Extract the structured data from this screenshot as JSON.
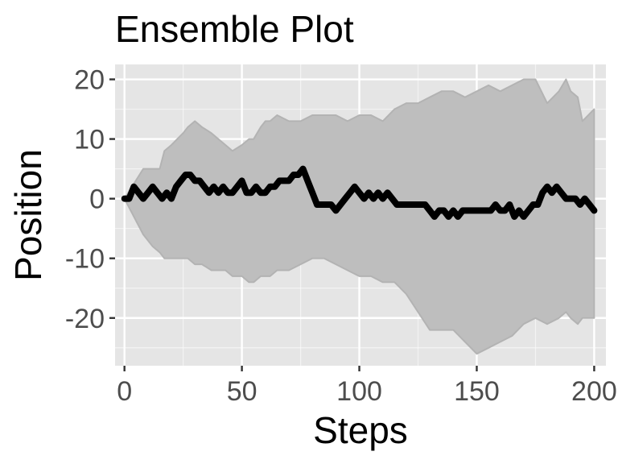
{
  "chart_data": {
    "type": "area",
    "title": "Ensemble Plot",
    "xlabel": "Steps",
    "ylabel": "Position",
    "xlim": [
      -4,
      205
    ],
    "ylim": [
      -28,
      22.5
    ],
    "x_ticks": [
      0,
      50,
      100,
      150,
      200
    ],
    "x_tick_labels": [
      "0",
      "50",
      "100",
      "150",
      "200"
    ],
    "y_ticks": [
      -20,
      -10,
      0,
      10,
      20
    ],
    "y_tick_labels": [
      "-20",
      "-10",
      "0",
      "10",
      "20"
    ],
    "grid": true,
    "legend": "none",
    "colors": {
      "panel": "#e5e5e5",
      "grid_major": "#ffffff",
      "ribbon_fill": "#bebebe",
      "ribbon_edge": "#b3b3b3",
      "line": "#000000",
      "tick": "#333333"
    },
    "series": [
      {
        "role": "ribbon",
        "x": [
          0,
          8,
          12,
          15,
          17,
          20,
          25,
          27,
          30,
          33,
          37,
          40,
          43,
          46,
          50,
          53,
          55,
          58,
          60,
          62,
          65,
          70,
          75,
          80,
          85,
          90,
          95,
          100,
          105,
          110,
          115,
          120,
          125,
          130,
          135,
          140,
          145,
          150,
          155,
          160,
          165,
          170,
          175,
          180,
          185,
          188,
          190,
          193,
          195,
          200
        ],
        "upper": [
          0,
          5,
          5,
          5,
          8,
          9,
          11,
          12,
          13,
          12,
          11,
          10,
          9,
          8,
          9,
          10,
          10,
          12,
          13,
          13,
          14,
          13,
          13,
          14,
          14,
          14,
          13,
          14,
          14,
          13,
          15,
          16,
          16,
          17,
          18,
          18,
          17,
          18,
          19,
          18,
          19,
          20,
          20,
          16,
          18,
          20,
          18,
          17,
          13,
          15
        ],
        "lower": [
          0,
          -6,
          -8,
          -9,
          -10,
          -10,
          -10,
          -10,
          -11,
          -11,
          -12,
          -12,
          -12,
          -13,
          -13,
          -14,
          -14,
          -13,
          -13,
          -13,
          -12,
          -12,
          -11,
          -10,
          -10,
          -11,
          -12,
          -13,
          -13,
          -14,
          -14,
          -16,
          -19,
          -22,
          -22,
          -22,
          -24,
          -26,
          -25,
          -24,
          -23,
          -21,
          -20,
          -21,
          -20,
          -19,
          -20,
          -21,
          -20,
          -20
        ]
      },
      {
        "role": "mean",
        "x": [
          0,
          2,
          4,
          6,
          8,
          10,
          12,
          14,
          16,
          18,
          20,
          22,
          24,
          26,
          28,
          30,
          32,
          34,
          36,
          38,
          40,
          42,
          44,
          46,
          48,
          50,
          52,
          54,
          56,
          58,
          60,
          62,
          64,
          66,
          68,
          70,
          72,
          74,
          76,
          78,
          80,
          82,
          84,
          86,
          88,
          90,
          92,
          94,
          96,
          98,
          100,
          102,
          104,
          106,
          108,
          110,
          112,
          114,
          116,
          118,
          120,
          122,
          124,
          126,
          128,
          130,
          132,
          134,
          136,
          138,
          140,
          142,
          144,
          146,
          148,
          150,
          152,
          154,
          156,
          158,
          160,
          162,
          164,
          166,
          168,
          170,
          172,
          174,
          176,
          178,
          180,
          182,
          184,
          186,
          188,
          190,
          192,
          194,
          196,
          198,
          200
        ],
        "y": [
          0,
          0,
          2,
          1,
          0,
          1,
          2,
          1,
          0,
          1,
          0,
          2,
          3,
          4,
          4,
          3,
          3,
          2,
          1,
          2,
          1,
          2,
          1,
          1,
          2,
          3,
          1,
          1,
          2,
          1,
          1,
          2,
          2,
          3,
          3,
          3,
          4,
          4,
          5,
          3,
          1,
          -1,
          -1,
          -1,
          -1,
          -2,
          -1,
          0,
          1,
          2,
          1,
          0,
          1,
          0,
          1,
          0,
          1,
          0,
          -1,
          -1,
          -1,
          -1,
          -1,
          -1,
          -1,
          -2,
          -3,
          -2,
          -2,
          -3,
          -2,
          -3,
          -2,
          -2,
          -2,
          -2,
          -2,
          -2,
          -2,
          -1,
          -2,
          -2,
          -1,
          -3,
          -2,
          -3,
          -2,
          -1,
          -1,
          1,
          2,
          1,
          2,
          1,
          0,
          0,
          0,
          -1,
          0,
          -1,
          -2
        ]
      }
    ]
  }
}
